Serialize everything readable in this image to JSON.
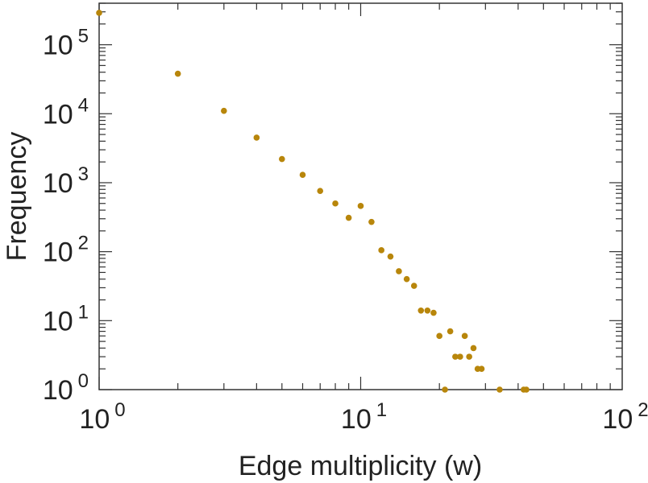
{
  "chart_data": {
    "type": "scatter",
    "xlabel": "Edge multiplicity (w)",
    "ylabel": "Frequency",
    "x_scale": "log",
    "y_scale": "log",
    "xlim": [
      1,
      100
    ],
    "ylim": [
      1,
      400000
    ],
    "grid": false,
    "marker_color": "#b8860b",
    "x_ticks": [
      {
        "base": "10",
        "exp": "0"
      },
      {
        "base": "10",
        "exp": "1"
      },
      {
        "base": "10",
        "exp": "2"
      }
    ],
    "y_ticks": [
      {
        "base": "10",
        "exp": "0"
      },
      {
        "base": "10",
        "exp": "1"
      },
      {
        "base": "10",
        "exp": "2"
      },
      {
        "base": "10",
        "exp": "3"
      },
      {
        "base": "10",
        "exp": "4"
      },
      {
        "base": "10",
        "exp": "5"
      }
    ],
    "series": [
      {
        "points": [
          {
            "x": 1,
            "y": 290000
          },
          {
            "x": 2,
            "y": 38000
          },
          {
            "x": 3,
            "y": 11000
          },
          {
            "x": 4,
            "y": 4500
          },
          {
            "x": 5,
            "y": 2200
          },
          {
            "x": 6,
            "y": 1300
          },
          {
            "x": 7,
            "y": 760
          },
          {
            "x": 8,
            "y": 500
          },
          {
            "x": 9,
            "y": 310
          },
          {
            "x": 10,
            "y": 460
          },
          {
            "x": 11,
            "y": 270
          },
          {
            "x": 12,
            "y": 105
          },
          {
            "x": 13,
            "y": 85
          },
          {
            "x": 14,
            "y": 52
          },
          {
            "x": 15,
            "y": 40
          },
          {
            "x": 16,
            "y": 32
          },
          {
            "x": 17,
            "y": 14
          },
          {
            "x": 18,
            "y": 14
          },
          {
            "x": 19,
            "y": 13
          },
          {
            "x": 20,
            "y": 6
          },
          {
            "x": 21,
            "y": 1
          },
          {
            "x": 22,
            "y": 7
          },
          {
            "x": 23,
            "y": 3
          },
          {
            "x": 24,
            "y": 3
          },
          {
            "x": 25,
            "y": 6
          },
          {
            "x": 26,
            "y": 3
          },
          {
            "x": 27,
            "y": 4
          },
          {
            "x": 28,
            "y": 2
          },
          {
            "x": 29,
            "y": 2
          },
          {
            "x": 34,
            "y": 1
          },
          {
            "x": 42,
            "y": 1
          },
          {
            "x": 43,
            "y": 1
          }
        ]
      }
    ]
  }
}
